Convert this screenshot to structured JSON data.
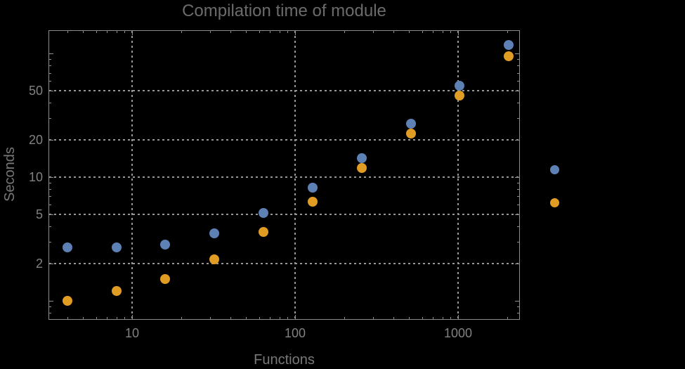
{
  "colors": {
    "background": "#000000",
    "frame": "#8c8c8c",
    "grid": "#979797",
    "title": "#6b6b6b",
    "tick_label": "#818181",
    "axis_label": "#787878",
    "series1": "#5e81b5",
    "series2": "#e19c24"
  },
  "chart_data": {
    "type": "scatter",
    "title": "Compilation time of module",
    "xlabel": "Functions",
    "ylabel": "Seconds",
    "x_scale": "log",
    "y_scale": "log",
    "grid": "major-only-dotted",
    "xlim": [
      3.07,
      2395
    ],
    "ylim": [
      0.7,
      155
    ],
    "x_ticks": [
      10,
      100,
      1000
    ],
    "y_ticks": [
      2,
      5,
      10,
      20,
      50
    ],
    "x": [
      4,
      8,
      16,
      32,
      64,
      128,
      256,
      512,
      1024,
      2048
    ],
    "series": [
      {
        "name": "series-1-blue",
        "color": "#5e81b5",
        "values": [
          2.7,
          2.7,
          2.85,
          3.5,
          5.1,
          8.2,
          14.2,
          27,
          55,
          117
        ]
      },
      {
        "name": "series-2-orange",
        "color": "#e19c24",
        "values": [
          1.0,
          1.2,
          1.5,
          2.15,
          3.6,
          6.3,
          11.9,
          22.5,
          46,
          96
        ]
      }
    ],
    "legend": {
      "position": "right-outside",
      "labels_visible": false,
      "markers": [
        {
          "series": "series-1-blue",
          "color": "#5e81b5"
        },
        {
          "series": "series-2-orange",
          "color": "#e19c24"
        }
      ]
    }
  }
}
